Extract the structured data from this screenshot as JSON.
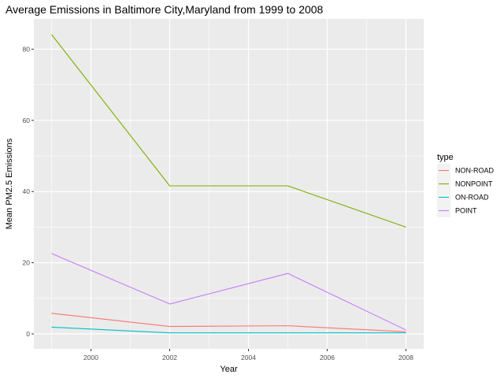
{
  "chart_data": {
    "type": "line",
    "title": "Average Emissions in Baltimore City,Maryland from 1999 to 2008",
    "xlabel": "Year",
    "ylabel": "Mean PM2.5 Emissions",
    "x": [
      1999,
      2002,
      2005,
      2008
    ],
    "xlim": [
      1998.55,
      2008.45
    ],
    "ylim": [
      -4.2,
      88.5
    ],
    "xticks": [
      2000,
      2002,
      2004,
      2006,
      2008
    ],
    "yticks": [
      0,
      20,
      40,
      60,
      80
    ],
    "grid": true,
    "legend_title": "type",
    "legend_position": "right",
    "series": [
      {
        "name": "NON-ROAD",
        "color": "#F8766D",
        "values": [
          5.8,
          2.1,
          2.3,
          0.6
        ]
      },
      {
        "name": "NONPOINT",
        "color": "#7CAE00",
        "values": [
          84.1,
          41.6,
          41.6,
          30.0
        ]
      },
      {
        "name": "ON-ROAD",
        "color": "#00BFC4",
        "values": [
          1.9,
          0.3,
          0.3,
          0.3
        ]
      },
      {
        "name": "POINT",
        "color": "#C77CFF",
        "values": [
          22.6,
          8.4,
          17.0,
          1.1
        ]
      }
    ]
  }
}
